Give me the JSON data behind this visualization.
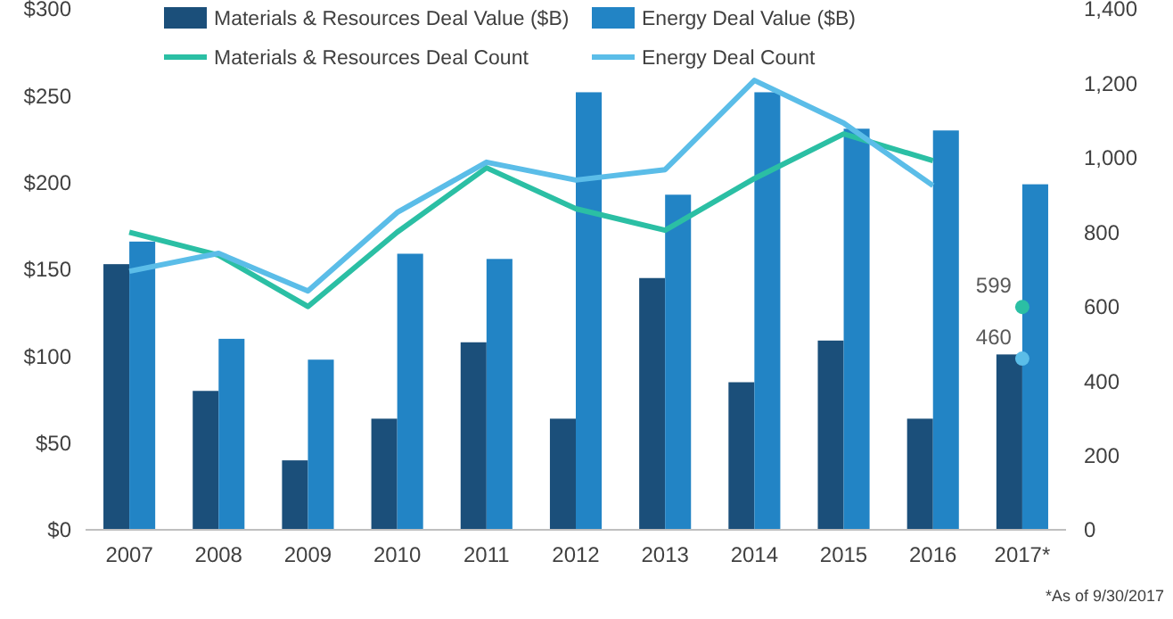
{
  "chart_data": {
    "type": "bar",
    "categories": [
      "2007",
      "2008",
      "2009",
      "2010",
      "2011",
      "2012",
      "2013",
      "2014",
      "2015",
      "2016",
      "2017*"
    ],
    "series": [
      {
        "name": "Materials & Resources Deal Value ($B)",
        "color": "#1b4f7a",
        "values": [
          153,
          80,
          40,
          64,
          108,
          64,
          145,
          85,
          109,
          64,
          101
        ]
      },
      {
        "name": "Energy Deal Value ($B)",
        "color": "#2284c5",
        "values": [
          166,
          110,
          98,
          159,
          156,
          252,
          193,
          252,
          231,
          230,
          199
        ]
      },
      {
        "name": "Materials & Resources Deal Count",
        "type": "line",
        "axis": "y2",
        "color": "#2bbfa4",
        "values": [
          800,
          738,
          600,
          800,
          973,
          863,
          805,
          944,
          1064,
          992,
          null
        ]
      },
      {
        "name": "Energy Deal Count",
        "type": "line",
        "axis": "y2",
        "color": "#5bbde8",
        "values": [
          695,
          743,
          642,
          853,
          988,
          940,
          968,
          1208,
          1093,
          925,
          null
        ]
      },
      {
        "type": "scatter",
        "axis": "y2",
        "color": "#2bbfa4",
        "x": [
          "2017*"
        ],
        "values": [
          599
        ],
        "value_labels": [
          "599"
        ]
      },
      {
        "type": "scatter",
        "axis": "y2",
        "color": "#5bbde8",
        "x": [
          "2017*"
        ],
        "values": [
          460
        ],
        "value_labels": [
          "460"
        ]
      }
    ],
    "ylim": [
      0,
      300
    ],
    "yticks": [
      {
        "value": 0,
        "label": "$0"
      },
      {
        "value": 50,
        "label": "$50"
      },
      {
        "value": 100,
        "label": "$100"
      },
      {
        "value": 150,
        "label": "$150"
      },
      {
        "value": 200,
        "label": "$200"
      },
      {
        "value": 250,
        "label": "$250"
      },
      {
        "value": 300,
        "label": "$300"
      }
    ],
    "y2lim": [
      0,
      1400
    ],
    "y2ticks": [
      0,
      200,
      400,
      600,
      800,
      {
        "value": 1000,
        "label": "1,000"
      },
      {
        "value": 1200,
        "label": "1,200"
      },
      {
        "value": 1400,
        "label": "1,400"
      }
    ],
    "legend": "top left",
    "grid": false,
    "annotations": [
      "*As of 9/30/2017"
    ]
  }
}
